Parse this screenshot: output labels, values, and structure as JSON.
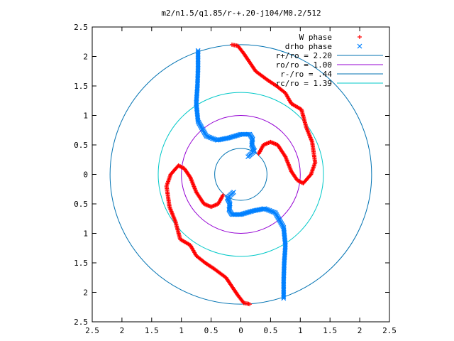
{
  "chart_data": {
    "type": "scatter",
    "title": "m2/n1.5/q1.85/r-+.20-j104/M0.2/512",
    "xlabel": "",
    "ylabel": "",
    "xlim": [
      -2.5,
      2.5
    ],
    "ylim": [
      -2.5,
      2.5
    ],
    "x_ticks": [
      -2.5,
      -2,
      -1.5,
      -1,
      -0.5,
      0,
      0.5,
      1,
      1.5,
      2,
      2.5
    ],
    "y_ticks": [
      -2.5,
      -2,
      -1.5,
      -1,
      -0.5,
      0,
      0.5,
      1,
      1.5,
      2,
      2.5
    ],
    "x_tick_labels": [
      "2.5",
      "2",
      "1.5",
      "1",
      "0.5",
      "0",
      "0.5",
      "1",
      "1.5",
      "2",
      "2.5"
    ],
    "y_tick_labels": [
      "2.5",
      "2",
      "1.5",
      "1",
      "0.5",
      "0",
      "0.5",
      "1",
      "1.5",
      "2",
      "2.5"
    ],
    "grid": false,
    "legend_position": "top-right",
    "legend": [
      {
        "label": "W phase",
        "marker": "+",
        "color": "#ff0000"
      },
      {
        "label": "drho phase",
        "marker": "x",
        "color": "#0080ff"
      },
      {
        "label": "r+/ro = 2.20",
        "marker": "line",
        "color": "#0072b2"
      },
      {
        "label": "ro/ro = 1.00",
        "marker": "line",
        "color": "#9400d3"
      },
      {
        "label": "r-/ro = .44",
        "marker": "line",
        "color": "#0072b2"
      },
      {
        "label": "rc/ro = 1.39",
        "marker": "line",
        "color": "#00c8c8"
      }
    ],
    "circles": [
      {
        "name": "r+/ro = 2.20",
        "r": 2.2,
        "color": "#0072b2"
      },
      {
        "name": "ro/ro = 1.00",
        "r": 1.0,
        "color": "#9400d3"
      },
      {
        "name": "r-/ro = .44",
        "r": 0.44,
        "color": "#0072b2"
      },
      {
        "name": "rc/ro = 1.39",
        "r": 1.39,
        "color": "#00c8c8"
      }
    ],
    "series": [
      {
        "name": "W phase",
        "marker": "+",
        "color": "#ff0000",
        "arms": [
          [
            [
              -0.15,
              2.2
            ],
            [
              -0.05,
              2.18
            ],
            [
              0.05,
              2.05
            ],
            [
              0.15,
              1.9
            ],
            [
              0.25,
              1.75
            ],
            [
              0.45,
              1.6
            ],
            [
              0.6,
              1.5
            ],
            [
              0.75,
              1.38
            ],
            [
              0.85,
              1.2
            ],
            [
              1.02,
              1.1
            ],
            [
              1.1,
              0.8
            ],
            [
              1.2,
              0.55
            ],
            [
              1.25,
              0.2
            ],
            [
              1.18,
              0.0
            ],
            [
              1.05,
              -0.15
            ],
            [
              0.95,
              -0.1
            ],
            [
              0.85,
              0.05
            ],
            [
              0.75,
              0.3
            ],
            [
              0.62,
              0.5
            ],
            [
              0.5,
              0.55
            ],
            [
              0.38,
              0.5
            ],
            [
              0.3,
              0.35
            ]
          ],
          [
            [
              0.15,
              -2.2
            ],
            [
              0.05,
              -2.18
            ],
            [
              -0.05,
              -2.05
            ],
            [
              -0.15,
              -1.9
            ],
            [
              -0.25,
              -1.75
            ],
            [
              -0.45,
              -1.6
            ],
            [
              -0.6,
              -1.5
            ],
            [
              -0.75,
              -1.38
            ],
            [
              -0.85,
              -1.2
            ],
            [
              -1.02,
              -1.1
            ],
            [
              -1.1,
              -0.8
            ],
            [
              -1.2,
              -0.55
            ],
            [
              -1.25,
              -0.2
            ],
            [
              -1.18,
              0.0
            ],
            [
              -1.05,
              0.15
            ],
            [
              -0.95,
              0.1
            ],
            [
              -0.85,
              -0.05
            ],
            [
              -0.75,
              -0.3
            ],
            [
              -0.62,
              -0.5
            ],
            [
              -0.5,
              -0.55
            ],
            [
              -0.38,
              -0.5
            ],
            [
              -0.3,
              -0.35
            ]
          ]
        ]
      },
      {
        "name": "drho phase",
        "marker": "x",
        "color": "#0080ff",
        "arms": [
          [
            [
              -0.72,
              2.1
            ],
            [
              -0.72,
              1.8
            ],
            [
              -0.73,
              1.5
            ],
            [
              -0.75,
              1.2
            ],
            [
              -0.72,
              0.9
            ],
            [
              -0.58,
              0.65
            ],
            [
              -0.4,
              0.58
            ],
            [
              -0.2,
              0.62
            ],
            [
              0.0,
              0.68
            ],
            [
              0.15,
              0.68
            ],
            [
              0.2,
              0.6
            ],
            [
              0.18,
              0.5
            ],
            [
              0.23,
              0.4
            ],
            [
              0.12,
              0.3
            ]
          ],
          [
            [
              0.72,
              -2.1
            ],
            [
              0.72,
              -1.8
            ],
            [
              0.73,
              -1.5
            ],
            [
              0.75,
              -1.2
            ],
            [
              0.72,
              -0.9
            ],
            [
              0.58,
              -0.65
            ],
            [
              0.4,
              -0.58
            ],
            [
              0.2,
              -0.62
            ],
            [
              0.0,
              -0.68
            ],
            [
              -0.15,
              -0.68
            ],
            [
              -0.2,
              -0.6
            ],
            [
              -0.18,
              -0.5
            ],
            [
              -0.23,
              -0.4
            ],
            [
              -0.12,
              -0.3
            ]
          ]
        ]
      }
    ]
  }
}
